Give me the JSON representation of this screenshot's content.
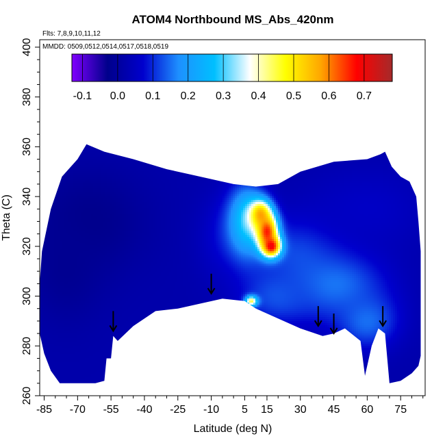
{
  "chart_data": {
    "type": "heatmap",
    "title": "ATOM4 Northbound MS_Abs_420nm",
    "flights_note": "Flts: 7,8,9,10,11,12",
    "dates_note": "MMDD: 0509,0512,0514,0517,0518,0519",
    "xlabel": "Latitude (deg N)",
    "ylabel": "Theta (C)",
    "xlim": [
      -87,
      86
    ],
    "ylim": [
      260,
      403
    ],
    "x_ticks": [
      -85,
      -70,
      -55,
      -40,
      -25,
      -10,
      5,
      15,
      30,
      45,
      60,
      75
    ],
    "y_ticks": [
      260,
      280,
      300,
      320,
      340,
      360,
      380,
      400
    ],
    "colorbar": {
      "vmin": -0.13,
      "vmax": 0.78,
      "ticks": [
        -0.1,
        0.0,
        0.1,
        0.2,
        0.3,
        0.4,
        0.5,
        0.6,
        0.7
      ],
      "tick_labels": [
        "-0.1",
        "0.0",
        "0.1",
        "0.2",
        "0.3",
        "0.4",
        "0.5",
        "0.6",
        "0.7"
      ],
      "colors": [
        "#8000ff",
        "#00008b",
        "#0000cd",
        "#1e90ff",
        "#00bfff",
        "#ffffff",
        "#ffff00",
        "#ffa500",
        "#ff0000",
        "#a52a2a"
      ]
    },
    "background_value": 0.02,
    "field_outline": [
      [
        -87,
        305
      ],
      [
        -86,
        318
      ],
      [
        -82,
        335
      ],
      [
        -77,
        348
      ],
      [
        -70,
        355
      ],
      [
        -66,
        361
      ],
      [
        -58,
        358
      ],
      [
        -45,
        355
      ],
      [
        -30,
        351
      ],
      [
        -15,
        348
      ],
      [
        0,
        345
      ],
      [
        10,
        344
      ],
      [
        20,
        345
      ],
      [
        30,
        350
      ],
      [
        45,
        354
      ],
      [
        60,
        355
      ],
      [
        66,
        357
      ],
      [
        68,
        358
      ],
      [
        71,
        352
      ],
      [
        75,
        348
      ],
      [
        79,
        346
      ],
      [
        82,
        340
      ],
      [
        83,
        330
      ],
      [
        84,
        318
      ],
      [
        84,
        300
      ],
      [
        84,
        276
      ],
      [
        83,
        272
      ],
      [
        80,
        269
      ],
      [
        75,
        266
      ],
      [
        70,
        265
      ],
      [
        68,
        285
      ],
      [
        65,
        287
      ],
      [
        62,
        280
      ],
      [
        59,
        268
      ],
      [
        57,
        282
      ],
      [
        50,
        287
      ],
      [
        45,
        285
      ],
      [
        40,
        284
      ],
      [
        30,
        287
      ],
      [
        20,
        291
      ],
      [
        10,
        295
      ],
      [
        5,
        298
      ],
      [
        -5,
        299
      ],
      [
        -15,
        297
      ],
      [
        -25,
        295
      ],
      [
        -35,
        294
      ],
      [
        -45,
        288
      ],
      [
        -52,
        282
      ],
      [
        -54,
        284
      ],
      [
        -55,
        275
      ],
      [
        -57,
        275
      ],
      [
        -58,
        266
      ],
      [
        -62,
        265
      ],
      [
        -66,
        265
      ],
      [
        -70,
        265
      ],
      [
        -78,
        265
      ],
      [
        -82,
        270
      ],
      [
        -85,
        277
      ],
      [
        -87,
        285
      ]
    ],
    "anomalies": [
      {
        "lat": -5,
        "theta": 324,
        "value": 0.07,
        "sx": 8,
        "sy": 12
      },
      {
        "lat": -65,
        "theta": 330,
        "value": -0.03,
        "sx": 18,
        "sy": 15
      },
      {
        "lat": -75,
        "theta": 312,
        "value": -0.02,
        "sx": 12,
        "sy": 16
      },
      {
        "lat": 30,
        "theta": 318,
        "value": 0.12,
        "sx": 14,
        "sy": 10
      },
      {
        "lat": 45,
        "theta": 305,
        "value": 0.16,
        "sx": 16,
        "sy": 10
      },
      {
        "lat": 60,
        "theta": 290,
        "value": 0.15,
        "sx": 10,
        "sy": 8
      },
      {
        "lat": 20,
        "theta": 300,
        "value": 0.13,
        "sx": 12,
        "sy": 8
      },
      {
        "lat": 60,
        "theta": 335,
        "value": 0.06,
        "sx": 20,
        "sy": 12
      },
      {
        "lat": 6,
        "theta": 330,
        "value": 0.3,
        "sx": 6,
        "sy": 10
      },
      {
        "lat": 12,
        "theta": 333,
        "value": 0.55,
        "sx": 3.5,
        "sy": 4
      },
      {
        "lat": 15,
        "theta": 326,
        "value": 0.66,
        "sx": 3.5,
        "sy": 5
      },
      {
        "lat": 17,
        "theta": 320,
        "value": 0.7,
        "sx": 3,
        "sy": 3
      },
      {
        "lat": 8,
        "theta": 298,
        "value": 0.45,
        "sx": 2,
        "sy": 1.5
      }
    ],
    "arrows": [
      {
        "lat": -54,
        "theta": 289
      },
      {
        "lat": -10,
        "theta": 304
      },
      {
        "lat": 38,
        "theta": 291
      },
      {
        "lat": 45,
        "theta": 288
      },
      {
        "lat": 67,
        "theta": 291
      }
    ]
  }
}
